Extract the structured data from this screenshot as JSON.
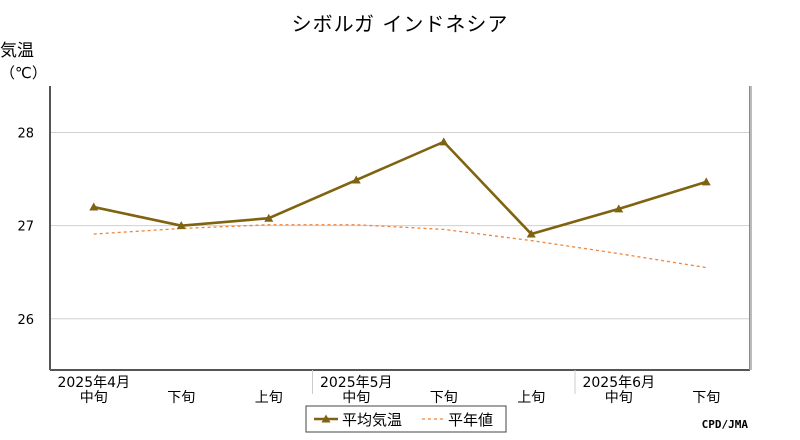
{
  "chart_data": {
    "type": "line",
    "title": "シボルガ インドネシア",
    "ylabel": "気温",
    "yunit": "（℃）",
    "ylim": [
      25.45,
      28.5
    ],
    "yticks": [
      26,
      27,
      28
    ],
    "grid": true,
    "categories": [
      "2025年4月 中旬",
      "2025年4月 下旬",
      "2025年5月 上旬",
      "2025年5月 中旬",
      "2025年5月 下旬",
      "2025年6月 上旬",
      "2025年6月 中旬",
      "2025年6月 下旬"
    ],
    "x_dekads": [
      "中旬",
      "下旬",
      "上旬",
      "中旬",
      "下旬",
      "上旬",
      "中旬",
      "下旬"
    ],
    "x_months": [
      {
        "label": "2025年4月",
        "center_index": 0
      },
      {
        "label": "2025年5月",
        "center_index": 3
      },
      {
        "label": "2025年6月",
        "center_index": 6
      }
    ],
    "series": [
      {
        "name": "平均気温",
        "color": "#7f6310",
        "values": [
          27.2,
          27.0,
          27.08,
          27.49,
          27.9,
          26.91,
          27.18,
          27.47
        ]
      },
      {
        "name": "平年値",
        "color": "#f0843c",
        "values": [
          26.91,
          26.97,
          27.01,
          27.01,
          26.96,
          26.84,
          26.7,
          26.55
        ]
      }
    ],
    "legend_position": "bottom-center",
    "credit": "CPD/JMA"
  }
}
